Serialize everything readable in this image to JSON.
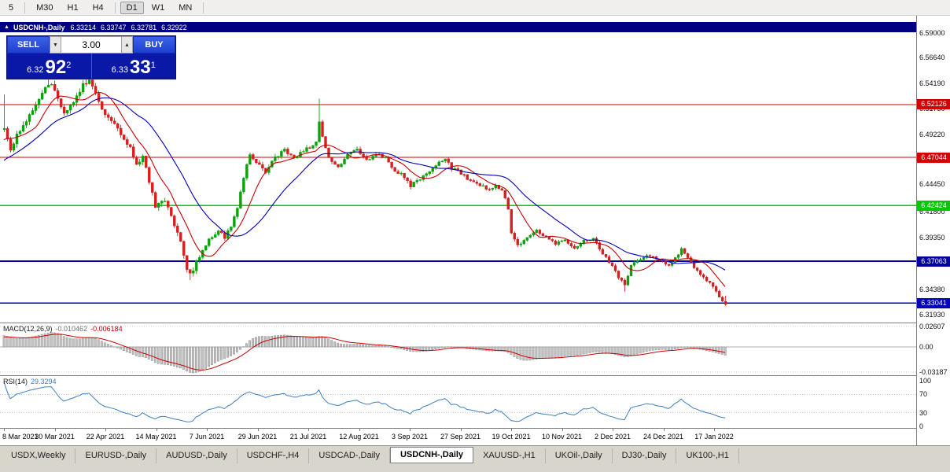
{
  "toolbar": {
    "timeframes": [
      {
        "label": "5",
        "active": false,
        "sep_after": true
      },
      {
        "label": "M30",
        "active": false,
        "sep_after": false
      },
      {
        "label": "H1",
        "active": false,
        "sep_after": false
      },
      {
        "label": "H4",
        "active": false,
        "sep_after": true
      },
      {
        "label": "D1",
        "active": true,
        "sep_after": false
      },
      {
        "label": "W1",
        "active": false,
        "sep_after": false
      },
      {
        "label": "MN",
        "active": false,
        "sep_after": true
      }
    ]
  },
  "chart_header": {
    "collapse_icon": "▲",
    "symbol": "USDCNH-,Daily",
    "open": "6.33214",
    "high": "6.33747",
    "low": "6.32781",
    "close": "6.32922"
  },
  "trade_panel": {
    "sell_label": "SELL",
    "buy_label": "BUY",
    "volume": "3.00",
    "dropdown_icon": "▼",
    "stepper_icon": "▲",
    "bid": {
      "prefix": "6.32",
      "big": "92",
      "sup": "2"
    },
    "ask": {
      "prefix": "6.33",
      "big": "33",
      "sup": "1"
    }
  },
  "price_axis": {
    "labels": [
      "6.59000",
      "6.56640",
      "6.54190",
      "6.51750",
      "6.49220",
      "6.46790",
      "6.44450",
      "6.41800",
      "6.39350",
      "6.36900",
      "6.34380",
      "6.31930"
    ]
  },
  "levels": [
    {
      "value": 6.52126,
      "label": "6.52126",
      "color": "#d40000",
      "width": 1.2
    },
    {
      "value": 6.47044,
      "label": "6.47044",
      "color": "#d40000",
      "width": 1.2
    },
    {
      "value": 6.42424,
      "label": "6.42424",
      "color": "#00c800",
      "width": 1.6
    },
    {
      "value": 6.37063,
      "label": "6.37063",
      "color": "#0000a0",
      "width": 2
    },
    {
      "value": 6.33041,
      "label": "6.33041",
      "color": "#0000b8",
      "width": 1.3
    }
  ],
  "macd_panel": {
    "label": "MACD(12,26,9)",
    "value_main": "-0.010462",
    "value_signal": "-0.006184",
    "scale": [
      "0.02607",
      "0.00",
      "-0.03187"
    ]
  },
  "rsi_panel": {
    "label": "RSI(14)",
    "value": "29.3294",
    "scale": [
      "100",
      "70",
      "30",
      "0"
    ]
  },
  "date_axis": [
    "8 Mar 2021",
    "30 Mar 2021",
    "22 Apr 2021",
    "14 May 2021",
    "7 Jun 2021",
    "29 Jun 2021",
    "21 Jul 2021",
    "12 Aug 2021",
    "3 Sep 2021",
    "27 Sep 2021",
    "19 Oct 2021",
    "10 Nov 2021",
    "2 Dec 2021",
    "24 Dec 2021",
    "17 Jan 2022"
  ],
  "tabs": [
    {
      "label": "USDX,Weekly",
      "active": false
    },
    {
      "label": "EURUSD-,Daily",
      "active": false
    },
    {
      "label": "AUDUSD-,Daily",
      "active": false
    },
    {
      "label": "USDCHF-,H4",
      "active": false
    },
    {
      "label": "USDCAD-,Daily",
      "active": false
    },
    {
      "label": "USDCNH-,Daily",
      "active": true
    },
    {
      "label": "XAUUSD-,H1",
      "active": false
    },
    {
      "label": "UKOil-,Daily",
      "active": false
    },
    {
      "label": "DJ30-,Daily",
      "active": false
    },
    {
      "label": "UK100-,H1",
      "active": false
    }
  ],
  "chart_data": {
    "type": "candlestick",
    "symbol": "USDCNH",
    "timeframe": "Daily",
    "visible_range": {
      "start": "8 Mar 2021",
      "end": "21 Jan 2022"
    },
    "price_range_shown": [
      6.3193,
      6.59
    ],
    "horizontal_levels": [
      6.52126,
      6.47044,
      6.42424,
      6.37063,
      6.33041
    ],
    "last_candle": {
      "open": 6.33214,
      "high": 6.33747,
      "low": 6.32781,
      "close": 6.32922
    },
    "price_anchors": [
      [
        -26,
        6.43
      ],
      [
        -18,
        6.452
      ],
      [
        -8,
        6.478
      ],
      [
        0,
        6.5
      ],
      [
        2,
        6.476
      ],
      [
        4,
        6.492
      ],
      [
        7,
        6.505
      ],
      [
        10,
        6.52
      ],
      [
        13,
        6.538
      ],
      [
        15,
        6.542
      ],
      [
        17,
        6.527
      ],
      [
        19,
        6.514
      ],
      [
        22,
        6.524
      ],
      [
        25,
        6.54
      ],
      [
        27,
        6.544
      ],
      [
        29,
        6.532
      ],
      [
        32,
        6.512
      ],
      [
        36,
        6.498
      ],
      [
        40,
        6.48
      ],
      [
        42,
        6.463
      ],
      [
        44,
        6.472
      ],
      [
        46,
        6.448
      ],
      [
        48,
        6.424
      ],
      [
        51,
        6.43
      ],
      [
        53,
        6.414
      ],
      [
        56,
        6.388
      ],
      [
        58,
        6.362
      ],
      [
        59,
        6.357
      ],
      [
        61,
        6.37
      ],
      [
        63,
        6.38
      ],
      [
        65,
        6.392
      ],
      [
        68,
        6.4
      ],
      [
        70,
        6.394
      ],
      [
        72,
        6.404
      ],
      [
        74,
        6.423
      ],
      [
        76,
        6.452
      ],
      [
        78,
        6.474
      ],
      [
        80,
        6.466
      ],
      [
        83,
        6.457
      ],
      [
        86,
        6.47
      ],
      [
        89,
        6.478
      ],
      [
        92,
        6.469
      ],
      [
        95,
        6.477
      ],
      [
        99,
        6.484
      ],
      [
        100,
        6.505
      ],
      [
        101,
        6.49
      ],
      [
        103,
        6.47
      ],
      [
        106,
        6.461
      ],
      [
        109,
        6.474
      ],
      [
        112,
        6.479
      ],
      [
        115,
        6.468
      ],
      [
        118,
        6.474
      ],
      [
        121,
        6.47
      ],
      [
        124,
        6.458
      ],
      [
        127,
        6.452
      ],
      [
        129,
        6.443
      ],
      [
        131,
        6.448
      ],
      [
        134,
        6.454
      ],
      [
        137,
        6.463
      ],
      [
        140,
        6.469
      ],
      [
        142,
        6.46
      ],
      [
        144,
        6.458
      ],
      [
        147,
        6.45
      ],
      [
        150,
        6.446
      ],
      [
        153,
        6.44
      ],
      [
        156,
        6.443
      ],
      [
        158,
        6.44
      ],
      [
        160,
        6.42
      ],
      [
        161,
        6.397
      ],
      [
        163,
        6.386
      ],
      [
        166,
        6.394
      ],
      [
        169,
        6.4
      ],
      [
        172,
        6.393
      ],
      [
        175,
        6.388
      ],
      [
        178,
        6.391
      ],
      [
        181,
        6.384
      ],
      [
        184,
        6.39
      ],
      [
        187,
        6.392
      ],
      [
        189,
        6.383
      ],
      [
        191,
        6.374
      ],
      [
        193,
        6.367
      ],
      [
        195,
        6.355
      ],
      [
        197,
        6.348
      ],
      [
        199,
        6.367
      ],
      [
        201,
        6.371
      ],
      [
        204,
        6.377
      ],
      [
        207,
        6.373
      ],
      [
        209,
        6.371
      ],
      [
        211,
        6.366
      ],
      [
        213,
        6.374
      ],
      [
        215,
        6.382
      ],
      [
        217,
        6.374
      ],
      [
        219,
        6.365
      ],
      [
        221,
        6.357
      ],
      [
        223,
        6.352
      ],
      [
        225,
        6.347
      ],
      [
        226,
        6.342
      ],
      [
        227,
        6.337
      ],
      [
        228,
        6.333
      ],
      [
        229,
        6.3292
      ]
    ],
    "high_spikes": [
      [
        0,
        6.531
      ],
      [
        14,
        6.5465
      ],
      [
        26,
        6.549
      ],
      [
        100,
        6.527
      ]
    ],
    "low_spikes": [
      [
        59,
        6.3525
      ],
      [
        197,
        6.3415
      ]
    ],
    "indicators": {
      "macd": {
        "params": "12,26,9",
        "last_main": -0.010462,
        "last_signal": -0.006184
      },
      "rsi": {
        "period": 14,
        "last": 29.3294
      }
    },
    "ma_colors": {
      "fast": "#cc0000",
      "slow": "#0000bb"
    }
  }
}
